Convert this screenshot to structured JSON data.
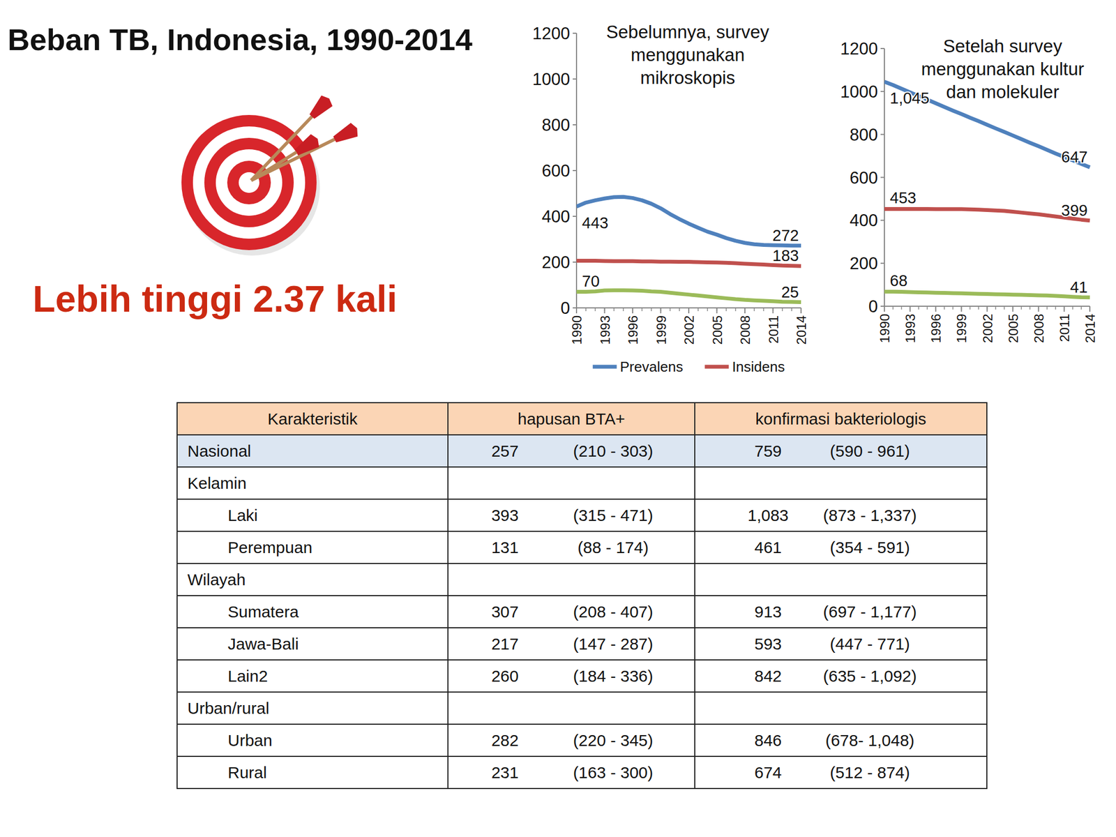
{
  "header": {
    "title": "Beban TB, Indonesia, 1990-2014",
    "highlight": "Lebih tinggi 2.37 kali"
  },
  "chart_data": [
    {
      "type": "line",
      "title": "Sebelumnya, survey menggunakan mikroskopis",
      "x": [
        1990,
        1991,
        1992,
        1993,
        1994,
        1995,
        1996,
        1997,
        1998,
        1999,
        2000,
        2001,
        2002,
        2003,
        2004,
        2005,
        2006,
        2007,
        2008,
        2009,
        2010,
        2011,
        2012,
        2013,
        2014
      ],
      "xlim": [
        1990,
        2014
      ],
      "xticks": [
        1990,
        1993,
        1996,
        1999,
        2002,
        2005,
        2008,
        2011,
        2014
      ],
      "ylim": [
        0,
        1200
      ],
      "yticks": [
        0,
        200,
        400,
        600,
        800,
        1000,
        1200
      ],
      "grid": false,
      "legend": "bottom",
      "data_labels": true,
      "series": [
        {
          "name": "Prevalens",
          "color": "#4f81bd",
          "values": [
            443,
            460,
            470,
            478,
            484,
            485,
            480,
            470,
            455,
            435,
            410,
            388,
            368,
            350,
            333,
            320,
            305,
            293,
            284,
            278,
            275,
            274,
            273,
            272,
            272
          ],
          "value_labels": [
            "443",
            null,
            null,
            null,
            null,
            null,
            null,
            null,
            null,
            null,
            null,
            null,
            null,
            null,
            null,
            null,
            null,
            null,
            null,
            null,
            null,
            null,
            null,
            null,
            "272"
          ]
        },
        {
          "name": "Insidens",
          "color": "#c0504d",
          "values": [
            206,
            206,
            206,
            205,
            204,
            204,
            204,
            203,
            203,
            202,
            202,
            201,
            201,
            200,
            199,
            198,
            197,
            195,
            193,
            191,
            189,
            187,
            185,
            184,
            183
          ],
          "value_labels": [
            null,
            null,
            null,
            null,
            null,
            null,
            null,
            null,
            null,
            null,
            null,
            null,
            null,
            null,
            null,
            null,
            null,
            null,
            null,
            null,
            null,
            null,
            null,
            null,
            "183"
          ]
        },
        {
          "name": null,
          "color": "#9bbb59",
          "values": [
            70,
            70,
            72,
            76,
            77,
            77,
            76,
            75,
            72,
            70,
            66,
            62,
            58,
            54,
            50,
            46,
            42,
            38,
            35,
            33,
            31,
            29,
            27,
            26,
            25
          ],
          "value_labels": [
            "70",
            null,
            null,
            null,
            null,
            null,
            null,
            null,
            null,
            null,
            null,
            null,
            null,
            null,
            null,
            null,
            null,
            null,
            null,
            null,
            null,
            null,
            null,
            null,
            "25"
          ]
        }
      ]
    },
    {
      "type": "line",
      "title": "Setelah survey menggunakan kultur dan molekuler",
      "x": [
        1990,
        1991,
        1992,
        1993,
        1994,
        1995,
        1996,
        1997,
        1998,
        1999,
        2000,
        2001,
        2002,
        2003,
        2004,
        2005,
        2006,
        2007,
        2008,
        2009,
        2010,
        2011,
        2012,
        2013,
        2014
      ],
      "xlim": [
        1990,
        2014
      ],
      "xticks": [
        1990,
        1993,
        1996,
        1999,
        2002,
        2005,
        2008,
        2011,
        2014
      ],
      "ylim": [
        0,
        1200
      ],
      "yticks": [
        0,
        200,
        400,
        600,
        800,
        1000,
        1200
      ],
      "grid": false,
      "data_labels": true,
      "series": [
        {
          "name": null,
          "color": "#4f81bd",
          "values": [
            1045,
            1030,
            1013,
            996,
            979,
            962,
            945,
            928,
            911,
            895,
            878,
            862,
            845,
            828,
            812,
            795,
            778,
            761,
            745,
            728,
            711,
            695,
            679,
            663,
            647
          ],
          "value_labels": [
            "1,045",
            null,
            null,
            null,
            null,
            null,
            null,
            null,
            null,
            null,
            null,
            null,
            null,
            null,
            null,
            null,
            null,
            null,
            null,
            null,
            null,
            null,
            null,
            null,
            "647"
          ]
        },
        {
          "name": null,
          "color": "#c0504d",
          "values": [
            453,
            453,
            453,
            453,
            453,
            453,
            452,
            452,
            452,
            452,
            451,
            450,
            448,
            446,
            444,
            440,
            436,
            432,
            428,
            423,
            418,
            413,
            408,
            403,
            399
          ],
          "value_labels": [
            "453",
            null,
            null,
            null,
            null,
            null,
            null,
            null,
            null,
            null,
            null,
            null,
            null,
            null,
            null,
            null,
            null,
            null,
            null,
            null,
            null,
            null,
            null,
            null,
            "399"
          ]
        },
        {
          "name": null,
          "color": "#9bbb59",
          "values": [
            68,
            68,
            67,
            66,
            65,
            64,
            63,
            62,
            61,
            60,
            59,
            58,
            57,
            56,
            55,
            54,
            53,
            52,
            51,
            50,
            48,
            46,
            44,
            42,
            41
          ],
          "value_labels": [
            "68",
            null,
            null,
            null,
            null,
            null,
            null,
            null,
            null,
            null,
            null,
            null,
            null,
            null,
            null,
            null,
            null,
            null,
            null,
            null,
            null,
            null,
            null,
            null,
            "41"
          ]
        }
      ]
    }
  ],
  "table": {
    "header": [
      "Karakteristik",
      "hapusan BTA+",
      "konfirmasi bakteriologis"
    ],
    "rows": [
      {
        "kind": "total",
        "cells": [
          "Nasional",
          "257",
          "(210 - 303)",
          "759",
          "(590 - 961)"
        ]
      },
      {
        "kind": "group",
        "cells": [
          "Kelamin"
        ]
      },
      {
        "kind": "item",
        "cells": [
          "Laki",
          "393",
          "(315 - 471)",
          "1,083",
          "(873 - 1,337)"
        ]
      },
      {
        "kind": "item",
        "cells": [
          "Perempuan",
          "131",
          "(88 - 174)",
          "461",
          "(354 - 591)"
        ]
      },
      {
        "kind": "group",
        "cells": [
          "Wilayah"
        ]
      },
      {
        "kind": "item",
        "cells": [
          "Sumatera",
          "307",
          "(208 - 407)",
          "913",
          "(697 - 1,177)"
        ]
      },
      {
        "kind": "item",
        "cells": [
          "Jawa-Bali",
          "217",
          "(147 - 287)",
          "593",
          "(447 - 771)"
        ]
      },
      {
        "kind": "item",
        "cells": [
          "Lain2",
          "260",
          "(184 - 336)",
          "842",
          "(635 - 1,092)"
        ]
      },
      {
        "kind": "group",
        "cells": [
          "Urban/rural"
        ]
      },
      {
        "kind": "item",
        "cells": [
          "Urban",
          "282",
          "(220 - 345)",
          "846",
          "(678- 1,048)"
        ]
      },
      {
        "kind": "item",
        "cells": [
          "Rural",
          "231",
          "(163 - 300)",
          "674",
          "(512 - 874)"
        ]
      }
    ]
  }
}
